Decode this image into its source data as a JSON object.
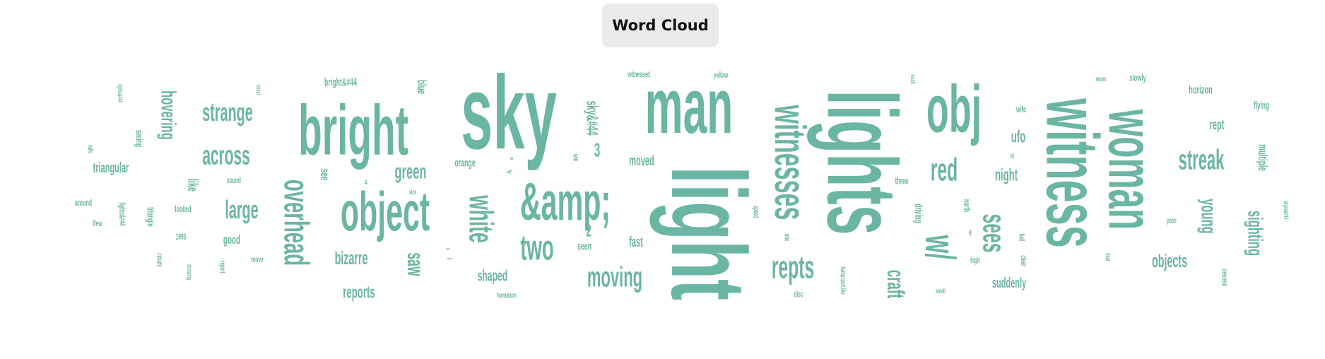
{
  "header": {
    "title": "Word Cloud"
  },
  "colors": {
    "word": "#6bb5a3",
    "button_bg": "#ebebeb",
    "button_text": "#111111"
  },
  "chart_data": {
    "type": "wordcloud",
    "words": [
      {
        "text": "light",
        "weight": 150
      },
      {
        "text": "sky",
        "weight": 148
      },
      {
        "text": "lights",
        "weight": 140
      },
      {
        "text": "man",
        "weight": 110
      },
      {
        "text": "witness",
        "weight": 105
      },
      {
        "text": "bright",
        "weight": 100
      },
      {
        "text": "obj",
        "weight": 95
      },
      {
        "text": "woman",
        "weight": 90
      },
      {
        "text": "object",
        "weight": 78
      },
      {
        "text": "&amp;",
        "weight": 75
      },
      {
        "text": "witnesses",
        "weight": 62
      },
      {
        "text": "w/",
        "weight": 60
      },
      {
        "text": "overhead",
        "weight": 50
      },
      {
        "text": "two",
        "weight": 50
      },
      {
        "text": "white",
        "weight": 48
      },
      {
        "text": "red",
        "weight": 45
      },
      {
        "text": "sees",
        "weight": 45
      },
      {
        "text": "repts",
        "weight": 45
      },
      {
        "text": "streak",
        "weight": 40
      },
      {
        "text": "moving",
        "weight": 40
      },
      {
        "text": "across",
        "weight": 38
      },
      {
        "text": "large",
        "weight": 36
      },
      {
        "text": "strange",
        "weight": 36
      },
      {
        "text": "craft",
        "weight": 34
      },
      {
        "text": "saw",
        "weight": 32
      },
      {
        "text": "young",
        "weight": 30
      },
      {
        "text": "sighting",
        "weight": 30
      },
      {
        "text": "green",
        "weight": 30
      },
      {
        "text": "hovering",
        "weight": 30
      },
      {
        "text": "objects",
        "weight": 26
      },
      {
        "text": "bizarre",
        "weight": 26
      },
      {
        "text": "reports",
        "weight": 24
      },
      {
        "text": "night",
        "weight": 24
      },
      {
        "text": "ufo",
        "weight": 24
      },
      {
        "text": "sky&#44",
        "weight": 22
      },
      {
        "text": "3",
        "weight": 28
      },
      {
        "text": "2",
        "weight": 24
      },
      {
        "text": "shaped",
        "weight": 22
      },
      {
        "text": "suddenly",
        "weight": 20
      },
      {
        "text": "triangular",
        "weight": 20
      },
      {
        "text": "moved",
        "weight": 20
      },
      {
        "text": "fast",
        "weight": 20
      },
      {
        "text": "like",
        "weight": 20
      },
      {
        "text": "rept",
        "weight": 20
      },
      {
        "text": "multiple",
        "weight": 18
      },
      {
        "text": "good",
        "weight": 18
      },
      {
        "text": "see",
        "weight": 18
      },
      {
        "text": "blue",
        "weight": 18
      },
      {
        "text": "horizon",
        "weight": 17
      },
      {
        "text": "bright&#44",
        "weight": 16
      },
      {
        "text": "orange",
        "weight": 16
      },
      {
        "text": "seen",
        "weight": 16
      },
      {
        "text": "driving",
        "weight": 15
      },
      {
        "text": "flying",
        "weight": 15
      },
      {
        "text": "slowly",
        "weight": 14
      },
      {
        "text": "triangle",
        "weight": 14
      },
      {
        "text": "three",
        "weight": 14
      },
      {
        "text": "seeing",
        "weight": 14
      },
      {
        "text": "e",
        "weight": 14
      },
      {
        "text": "wife",
        "weight": 13
      },
      {
        "text": "looked",
        "weight": 13
      },
      {
        "text": "around",
        "weight": 13
      },
      {
        "text": "north",
        "weight": 13
      },
      {
        "text": "witnessed",
        "weight": 12
      },
      {
        "text": "yellow",
        "weight": 12
      },
      {
        "text": "sound",
        "weight": 12
      },
      {
        "text": "flew",
        "weight": 12
      },
      {
        "text": "lights&#44",
        "weight": 12
      },
      {
        "text": "1995",
        "weight": 12
      },
      {
        "text": "disc",
        "weight": 12
      },
      {
        "text": "clear",
        "weight": 12
      },
      {
        "text": "high",
        "weight": 12
      },
      {
        "text": "move",
        "weight": 12
      },
      {
        "text": "ball",
        "weight": 11
      },
      {
        "text": "formation",
        "weight": 11
      },
      {
        "text": "speed",
        "weight": 11
      },
      {
        "text": "one",
        "weight": 11
      },
      {
        "text": "pass",
        "weight": 11
      },
      {
        "text": "descend",
        "weight": 11
      },
      {
        "text": "clouds",
        "weight": 11
      },
      {
        "text": "report",
        "weight": 11
      },
      {
        "text": "4",
        "weight": 11
      },
      {
        "text": "son",
        "weight": 11
      },
      {
        "text": "&amp;quot;like",
        "weight": 10
      },
      {
        "text": "moon",
        "weight": 10
      },
      {
        "text": "small",
        "weight": 10
      },
      {
        "text": "near",
        "weight": 10
      },
      {
        "text": "calls",
        "weight": 10
      },
      {
        "text": "size",
        "weight": 10
      },
      {
        "text": "streaking",
        "weight": 9
      },
      {
        "text": "south",
        "weight": 9
      },
      {
        "text": "car",
        "weight": 9
      },
      {
        "text": "round",
        "weight": 9
      },
      {
        "text": "lights&#44",
        "weight": 9
      },
      {
        "text": "larges&#44",
        "weight": 9
      },
      {
        "text": "fly",
        "weight": 9
      },
      {
        "text": "20",
        "weight": 9
      },
      {
        "text": "w",
        "weight": 9
      },
      {
        "text": "n",
        "weight": 9
      },
      {
        "text": "5",
        "weight": 9
      }
    ]
  }
}
